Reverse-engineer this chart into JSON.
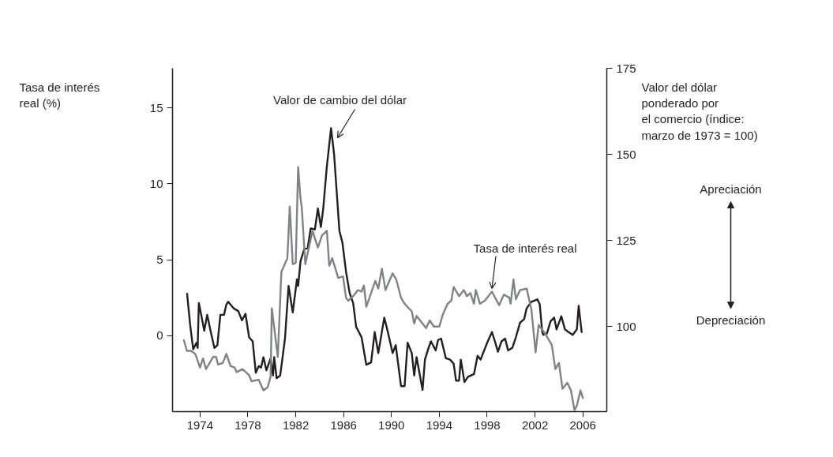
{
  "chart_data": {
    "type": "line",
    "xlabel": null,
    "ylabel": "Tasa de interés\nreal (%)",
    "y2label": "Valor del dólar\nponderado por\nel comercio (índice:\nmarzo de 1973 = 100)",
    "xlim": [
      1971.7,
      2008.0
    ],
    "xticks": [
      1974,
      1978,
      1982,
      1986,
      1990,
      1994,
      1998,
      2002,
      2006
    ],
    "ylim": [
      -5.0,
      17.6
    ],
    "yticks": [
      0,
      5,
      10,
      15
    ],
    "y2lim": [
      75.3,
      175
    ],
    "y2ticks": [
      100,
      125,
      150,
      175
    ],
    "grid": false,
    "line_style": "solid",
    "marker": "none",
    "series": [
      {
        "color": "#231f20",
        "axis": "y2",
        "x": [
          1972.92,
          1973.18,
          1973.43,
          1973.7,
          1973.8,
          1973.9,
          1974.1,
          1974.35,
          1974.6,
          1974.9,
          1975.2,
          1975.45,
          1975.7,
          1976.0,
          1976.2,
          1976.35,
          1976.8,
          1977.2,
          1977.5,
          1977.8,
          1978.1,
          1978.4,
          1978.66,
          1978.9,
          1979.1,
          1979.3,
          1979.55,
          1979.9,
          1980.1,
          1980.2,
          1980.4,
          1980.7,
          1980.9,
          1981.1,
          1981.4,
          1981.75,
          1982.1,
          1982.2,
          1982.4,
          1982.7,
          1983.0,
          1983.25,
          1983.6,
          1983.85,
          1984.1,
          1984.3,
          1984.6,
          1984.95,
          1985.2,
          1985.65,
          1985.9,
          1986.2,
          1986.5,
          1986.8,
          1987.05,
          1987.5,
          1987.9,
          1988.3,
          1988.6,
          1988.9,
          1989.4,
          1989.7,
          1990.1,
          1990.36,
          1990.7,
          1990.8,
          1991.1,
          1991.35,
          1991.7,
          1991.9,
          1992.1,
          1992.6,
          1992.8,
          1993.1,
          1993.3,
          1993.7,
          1993.9,
          1994.15,
          1994.55,
          1994.9,
          1995.2,
          1995.4,
          1995.65,
          1995.8,
          1996.1,
          1996.4,
          1996.9,
          1997.2,
          1997.45,
          1998.0,
          1998.4,
          1998.65,
          1998.9,
          1999.2,
          1999.5,
          1999.75,
          2000.1,
          2000.4,
          2000.75,
          2001.1,
          2001.3,
          2001.7,
          2002.2,
          2002.4,
          2002.6,
          2002.7,
          2003.0,
          2003.3,
          2003.6,
          2003.8,
          2004.2,
          2004.5,
          2004.8,
          2005.15,
          2005.5,
          2005.65,
          2005.9
        ],
        "values": [
          109.5,
          100.3,
          93.4,
          95.3,
          93.8,
          106.8,
          103.4,
          98.8,
          103.4,
          98.4,
          93.8,
          94.6,
          103.4,
          103.4,
          106.4,
          107.2,
          105.3,
          104.5,
          101.8,
          103.7,
          96.9,
          95.7,
          86.6,
          88.5,
          88.1,
          91.1,
          87.3,
          90.8,
          85.8,
          91.1,
          85.0,
          85.8,
          91.1,
          96.5,
          111.8,
          104.1,
          113.7,
          111.8,
          119.0,
          122.4,
          122.8,
          128.5,
          128.2,
          134.3,
          128.9,
          134.3,
          146.5,
          157.6,
          150.3,
          127.8,
          124.4,
          116.0,
          109.8,
          106.8,
          99.9,
          96.9,
          88.9,
          89.6,
          98.4,
          92.3,
          102.6,
          98.4,
          92.3,
          94.6,
          85.4,
          82.7,
          82.7,
          95.3,
          92.3,
          85.8,
          91.1,
          81.6,
          90.4,
          93.8,
          95.7,
          93.1,
          96.1,
          96.5,
          90.8,
          90.4,
          89.2,
          84.3,
          84.3,
          90.4,
          83.9,
          85.4,
          86.2,
          91.5,
          90.4,
          95.3,
          98.4,
          95.7,
          92.7,
          95.7,
          96.5,
          93.1,
          93.8,
          96.9,
          101.1,
          102.2,
          105.3,
          107.2,
          107.9,
          106.4,
          98.4,
          97.6,
          98.0,
          101.5,
          102.6,
          99.2,
          103.0,
          99.2,
          98.4,
          97.6,
          99.2,
          106.0,
          98.4
        ]
      },
      {
        "color": "#808285",
        "x": [
          1972.65,
          1972.9,
          1973.25,
          1973.6,
          1974.0,
          1974.25,
          1974.5,
          1975.1,
          1975.35,
          1975.5,
          1975.9,
          1976.2,
          1976.55,
          1976.9,
          1977.05,
          1977.55,
          1978.1,
          1978.3,
          1978.9,
          1979.3,
          1979.65,
          1979.9,
          1980.0,
          1980.5,
          1980.8,
          1981.3,
          1981.5,
          1981.75,
          1982.0,
          1982.2,
          1982.4,
          1982.5,
          1982.8,
          1983.1,
          1983.4,
          1983.85,
          1984.2,
          1984.6,
          1984.8,
          1985.05,
          1985.55,
          1985.95,
          1986.2,
          1986.4,
          1986.8,
          1987.2,
          1987.5,
          1987.7,
          1987.9,
          1988.65,
          1988.9,
          1989.2,
          1989.5,
          1990.1,
          1990.4,
          1990.8,
          1991.1,
          1991.7,
          1991.9,
          1992.1,
          1992.9,
          1993.2,
          1993.55,
          1994.0,
          1994.3,
          1994.7,
          1995.0,
          1995.2,
          1995.65,
          1996.05,
          1996.3,
          1996.6,
          1996.9,
          1997.05,
          1997.4,
          1997.8,
          1998.4,
          1999.0,
          1999.4,
          1999.85,
          1999.96,
          2000.2,
          2000.4,
          2000.75,
          2001.3,
          2001.7,
          2002.05,
          2002.3,
          2002.8,
          2003.4,
          2003.7,
          2004.0,
          2004.3,
          2004.7,
          2005.0,
          2005.3,
          2005.5,
          2005.8,
          2006.0
        ],
        "values": [
          -0.3,
          -1.0,
          -1.0,
          -1.2,
          -2.1,
          -1.5,
          -2.2,
          -1.4,
          -1.4,
          -1.9,
          -1.8,
          -1.2,
          -2.0,
          -2.1,
          -2.4,
          -2.2,
          -2.6,
          -3.0,
          -2.9,
          -3.6,
          -3.4,
          -2.7,
          1.8,
          -1.4,
          4.2,
          5.1,
          8.5,
          4.7,
          4.8,
          11.1,
          9.0,
          8.5,
          4.7,
          5.8,
          6.9,
          5.8,
          6.6,
          6.9,
          4.6,
          5.1,
          3.8,
          3.9,
          2.5,
          2.3,
          2.6,
          3.0,
          2.9,
          3.3,
          1.9,
          3.6,
          3.1,
          4.4,
          3.0,
          4.1,
          3.7,
          2.5,
          2.1,
          1.6,
          0.8,
          1.3,
          0.5,
          1.0,
          0.6,
          0.6,
          1.4,
          2.1,
          2.3,
          3.2,
          2.6,
          3.0,
          2.6,
          2.8,
          2.1,
          3.0,
          2.1,
          2.3,
          2.9,
          2.0,
          2.7,
          2.5,
          2.1,
          3.7,
          2.4,
          3.0,
          3.1,
          1.7,
          -1.1,
          0.7,
          0.2,
          -0.6,
          -2.2,
          -1.8,
          -3.5,
          -3.1,
          -3.6,
          -4.9,
          -4.6,
          -3.6,
          -4.1
        ]
      }
    ],
    "annotations": [
      "Valor de cambio del dólar",
      {
        "text": "Tasa de interés real",
        "x": 1998.2,
        "y": 3.0
      },
      "Apreciación",
      "Depreciación"
    ]
  }
}
